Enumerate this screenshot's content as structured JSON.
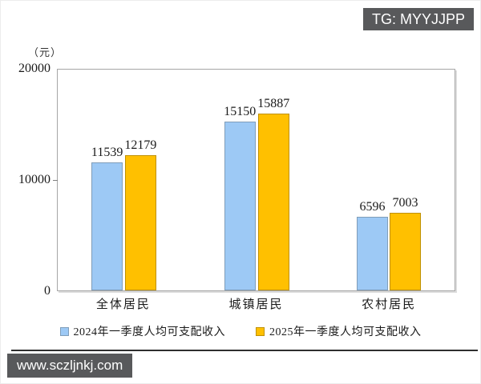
{
  "top_badge": {
    "label": "TG: MYYJJPP",
    "background": "#58595b",
    "text_color": "#ffffff"
  },
  "watermark": {
    "label": "www.sczljnkj.com",
    "background": "#58595b",
    "text_color": "#ffffff"
  },
  "chart_data": {
    "type": "bar",
    "title": "",
    "unit_label": "（元）",
    "categories": [
      "全体居民",
      "城镇居民",
      "农村居民"
    ],
    "series": [
      {
        "name": "2024年一季度人均可支配收入",
        "values": [
          11539,
          15150,
          6596
        ],
        "fill": "#9dc9f5",
        "border": "#7f9db9"
      },
      {
        "name": "2025年一季度人均可支配收入",
        "values": [
          12179,
          15887,
          7003
        ],
        "fill": "#ffc000",
        "border": "#bf9000"
      }
    ],
    "ylim": [
      0,
      20000
    ],
    "yticks": [
      0,
      10000,
      20000
    ],
    "grid": false,
    "legend_position": "bottom"
  }
}
